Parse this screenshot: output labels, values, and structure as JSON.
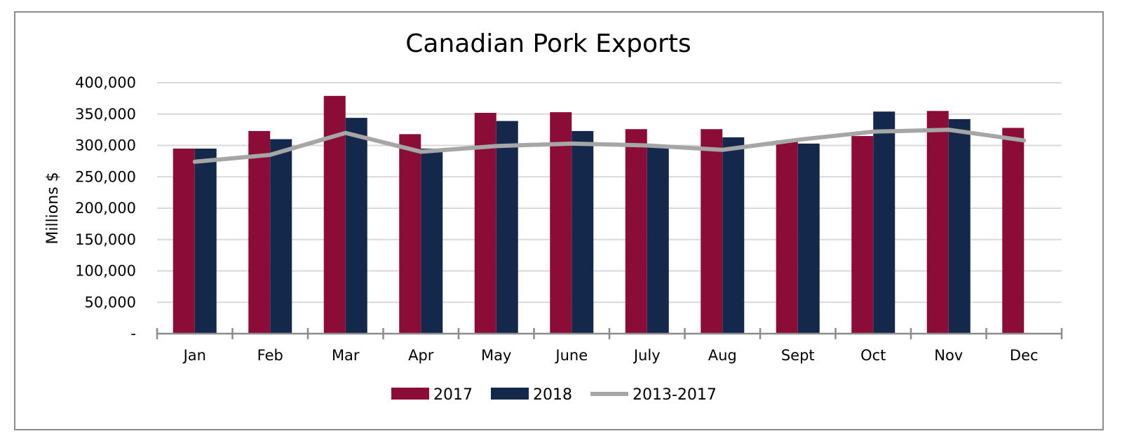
{
  "chart_data": {
    "type": "bar",
    "title": "Canadian Pork Exports",
    "ylabel": "Millions $",
    "xlabel": "",
    "ylim": [
      0,
      400000
    ],
    "yticks": [
      0,
      50000,
      100000,
      150000,
      200000,
      250000,
      300000,
      350000,
      400000
    ],
    "ytick_labels": [
      "-",
      "50,000",
      "100,000",
      "150,000",
      "200,000",
      "250,000",
      "300,000",
      "350,000",
      "400,000"
    ],
    "categories": [
      "Jan",
      "Feb",
      "Mar",
      "Apr",
      "May",
      "June",
      "July",
      "Aug",
      "Sept",
      "Oct",
      "Nov",
      "Dec"
    ],
    "series": [
      {
        "name": "2017",
        "type": "bar",
        "color": "#8b0d37",
        "values": [
          295000,
          323000,
          379000,
          318000,
          352000,
          353000,
          326000,
          326000,
          308000,
          315000,
          355000,
          328000
        ]
      },
      {
        "name": "2018",
        "type": "bar",
        "color": "#14284b",
        "values": [
          295000,
          310000,
          344000,
          295000,
          339000,
          323000,
          299000,
          313000,
          303000,
          354000,
          342000,
          null
        ]
      },
      {
        "name": "2013-2017",
        "type": "line",
        "color": "#a6a6a6",
        "values": [
          274000,
          285000,
          320000,
          290000,
          299000,
          303000,
          300000,
          293000,
          309000,
          322000,
          325000,
          308000
        ]
      }
    ],
    "grid": true,
    "legend": "bottom"
  }
}
